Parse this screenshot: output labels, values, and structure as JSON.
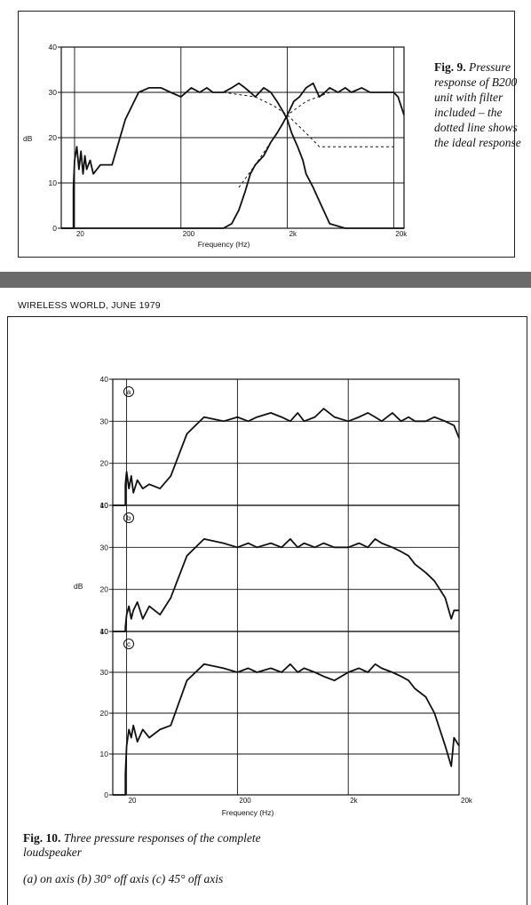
{
  "header": {
    "text": "WIRELESS WORLD, JUNE 1979"
  },
  "fig9": {
    "caption_label": "Fig. 9.",
    "caption_text": "Pressure response of B200 unit with filter included – the dotted line shows the ideal response",
    "chart_data": {
      "type": "line",
      "title": "",
      "xlabel": "Frequency (Hz)",
      "ylabel": "dB",
      "xscale": "log",
      "xlim": [
        15,
        25000
      ],
      "ylim": [
        0,
        40
      ],
      "xticks": [
        {
          "value": 20,
          "label": "20"
        },
        {
          "value": 200,
          "label": "200"
        },
        {
          "value": 2000,
          "label": "2k"
        },
        {
          "value": 20000,
          "label": "20k"
        }
      ],
      "yticks": [
        {
          "value": 40,
          "label": "40"
        },
        {
          "value": 30,
          "label": "30"
        },
        {
          "value": 20,
          "label": "20"
        },
        {
          "value": 10,
          "label": "10"
        },
        {
          "value": 0,
          "label": "0"
        }
      ],
      "grid": true,
      "series": [
        {
          "style": "solid",
          "x": [
            15,
            19.5,
            19.5,
            20,
            21,
            22,
            23,
            24,
            25,
            26,
            28,
            30,
            35,
            45,
            60,
            80,
            100,
            130,
            160,
            200,
            250,
            300,
            350,
            400,
            500,
            600,
            700,
            800,
            900,
            1000,
            1200,
            1400,
            1600,
            1800,
            2000,
            2200,
            2500,
            2800,
            3000,
            3500,
            4000,
            5000,
            7000,
            10000,
            20000,
            25000
          ],
          "y": [
            0,
            0,
            9,
            15,
            18,
            13,
            17,
            12,
            16,
            13,
            15,
            12,
            14,
            14,
            24,
            30,
            31,
            31,
            30,
            29,
            31,
            30,
            31,
            30,
            30,
            31,
            32,
            31,
            30,
            29,
            31,
            30,
            28,
            26,
            24,
            21,
            18,
            15,
            12,
            9,
            6,
            1,
            0,
            0,
            0,
            0
          ]
        },
        {
          "style": "solid",
          "x": [
            15,
            200,
            400,
            500,
            600,
            700,
            800,
            900,
            1000,
            1200,
            1400,
            1600,
            1800,
            2000,
            2300,
            2600,
            3000,
            3500,
            4000,
            4500,
            5000,
            6000,
            7000,
            8000,
            10000,
            12000,
            15000,
            18000,
            20000,
            22000,
            25000
          ],
          "y": [
            0,
            0,
            0,
            0,
            1,
            4,
            8,
            12,
            14,
            16,
            19,
            21,
            23,
            25,
            28,
            29,
            31,
            32,
            29,
            30,
            31,
            30,
            31,
            30,
            31,
            30,
            30,
            30,
            30,
            29,
            25
          ]
        },
        {
          "style": "dotted",
          "x": [
            50,
            100,
            200,
            500,
            1000,
            1500,
            2000,
            3000,
            4000,
            20000
          ],
          "y": [
            30,
            30,
            30,
            30,
            29,
            27,
            25,
            21,
            18,
            18
          ]
        },
        {
          "style": "dotted",
          "x": [
            700,
            1000,
            1500,
            2000,
            3000,
            5000,
            10000,
            20000
          ],
          "y": [
            9,
            14,
            20,
            25,
            28,
            30,
            30,
            30
          ]
        }
      ]
    }
  },
  "fig10": {
    "caption_label": "Fig. 10.",
    "caption_text": "Three pressure responses of the complete loudspeaker",
    "caption_sub": "(a) on axis (b) 30° off axis (c) 45° off axis",
    "chart_data": {
      "type": "line",
      "title": "",
      "xlabel": "Frequency (Hz)",
      "ylabel": "dB",
      "xscale": "log",
      "xlim": [
        15,
        20000
      ],
      "xticks": [
        {
          "value": 20,
          "label": "20"
        },
        {
          "value": 200,
          "label": "200"
        },
        {
          "value": 2000,
          "label": "2k"
        },
        {
          "value": 20000,
          "label": "20k"
        }
      ],
      "grid": true,
      "panels": [
        {
          "marker": "a",
          "ylim": [
            10,
            40
          ],
          "yticks": [
            {
              "value": 40,
              "label": "40"
            },
            {
              "value": 30,
              "label": "30"
            },
            {
              "value": 20,
              "label": "20"
            },
            {
              "value": 10,
              "label": "10"
            }
          ],
          "x": [
            15,
            19.5,
            19.5,
            20,
            21,
            22,
            23,
            25,
            28,
            32,
            40,
            50,
            70,
            100,
            150,
            200,
            250,
            300,
            400,
            500,
            600,
            700,
            800,
            1000,
            1200,
            1500,
            2000,
            2500,
            3000,
            3500,
            4000,
            5000,
            6000,
            7000,
            8000,
            10000,
            12000,
            15000,
            18000,
            20000
          ],
          "y": [
            10,
            10,
            15,
            18,
            14,
            17,
            13,
            16,
            14,
            15,
            14,
            17,
            27,
            31,
            30,
            31,
            30,
            31,
            32,
            31,
            30,
            32,
            30,
            31,
            33,
            31,
            30,
            31,
            32,
            31,
            30,
            32,
            30,
            31,
            30,
            30,
            31,
            30,
            29,
            26
          ]
        },
        {
          "marker": "b",
          "ylim": [
            10,
            40
          ],
          "yticks": [
            {
              "value": 40,
              "label": "40"
            },
            {
              "value": 30,
              "label": "30"
            },
            {
              "value": 20,
              "label": "20"
            },
            {
              "value": 10,
              "label": "10"
            }
          ],
          "x": [
            15,
            19.5,
            19.5,
            20,
            21,
            22,
            23,
            25,
            28,
            32,
            40,
            50,
            70,
            100,
            150,
            200,
            250,
            300,
            400,
            500,
            600,
            700,
            800,
            1000,
            1200,
            1500,
            2000,
            2500,
            3000,
            3500,
            4000,
            5000,
            6000,
            7000,
            8000,
            10000,
            12000,
            15000,
            17000,
            18000,
            20000
          ],
          "y": [
            10,
            10,
            11,
            14,
            16,
            13,
            15,
            17,
            13,
            16,
            14,
            18,
            28,
            32,
            31,
            30,
            31,
            30,
            31,
            30,
            32,
            30,
            31,
            30,
            31,
            30,
            30,
            31,
            30,
            32,
            31,
            30,
            29,
            28,
            26,
            24,
            22,
            18,
            13,
            15,
            15
          ]
        },
        {
          "marker": "c",
          "ylim": [
            0,
            40
          ],
          "yticks": [
            {
              "value": 40,
              "label": "40"
            },
            {
              "value": 30,
              "label": "30"
            },
            {
              "value": 20,
              "label": "20"
            },
            {
              "value": 10,
              "label": "10"
            },
            {
              "value": 0,
              "label": "0"
            }
          ],
          "x": [
            15,
            19.5,
            19.5,
            20,
            21,
            22,
            23,
            25,
            28,
            32,
            40,
            50,
            70,
            100,
            150,
            200,
            250,
            300,
            400,
            500,
            600,
            700,
            800,
            1000,
            1200,
            1500,
            2000,
            2500,
            3000,
            3500,
            4000,
            5000,
            6000,
            7000,
            8000,
            10000,
            12000,
            15000,
            17000,
            18000,
            20000
          ],
          "y": [
            0,
            0,
            5,
            12,
            16,
            14,
            17,
            13,
            16,
            14,
            16,
            17,
            28,
            32,
            31,
            30,
            31,
            30,
            31,
            30,
            32,
            30,
            31,
            30,
            29,
            28,
            30,
            31,
            30,
            32,
            31,
            30,
            29,
            28,
            26,
            24,
            20,
            12,
            7,
            14,
            12
          ]
        }
      ]
    }
  }
}
